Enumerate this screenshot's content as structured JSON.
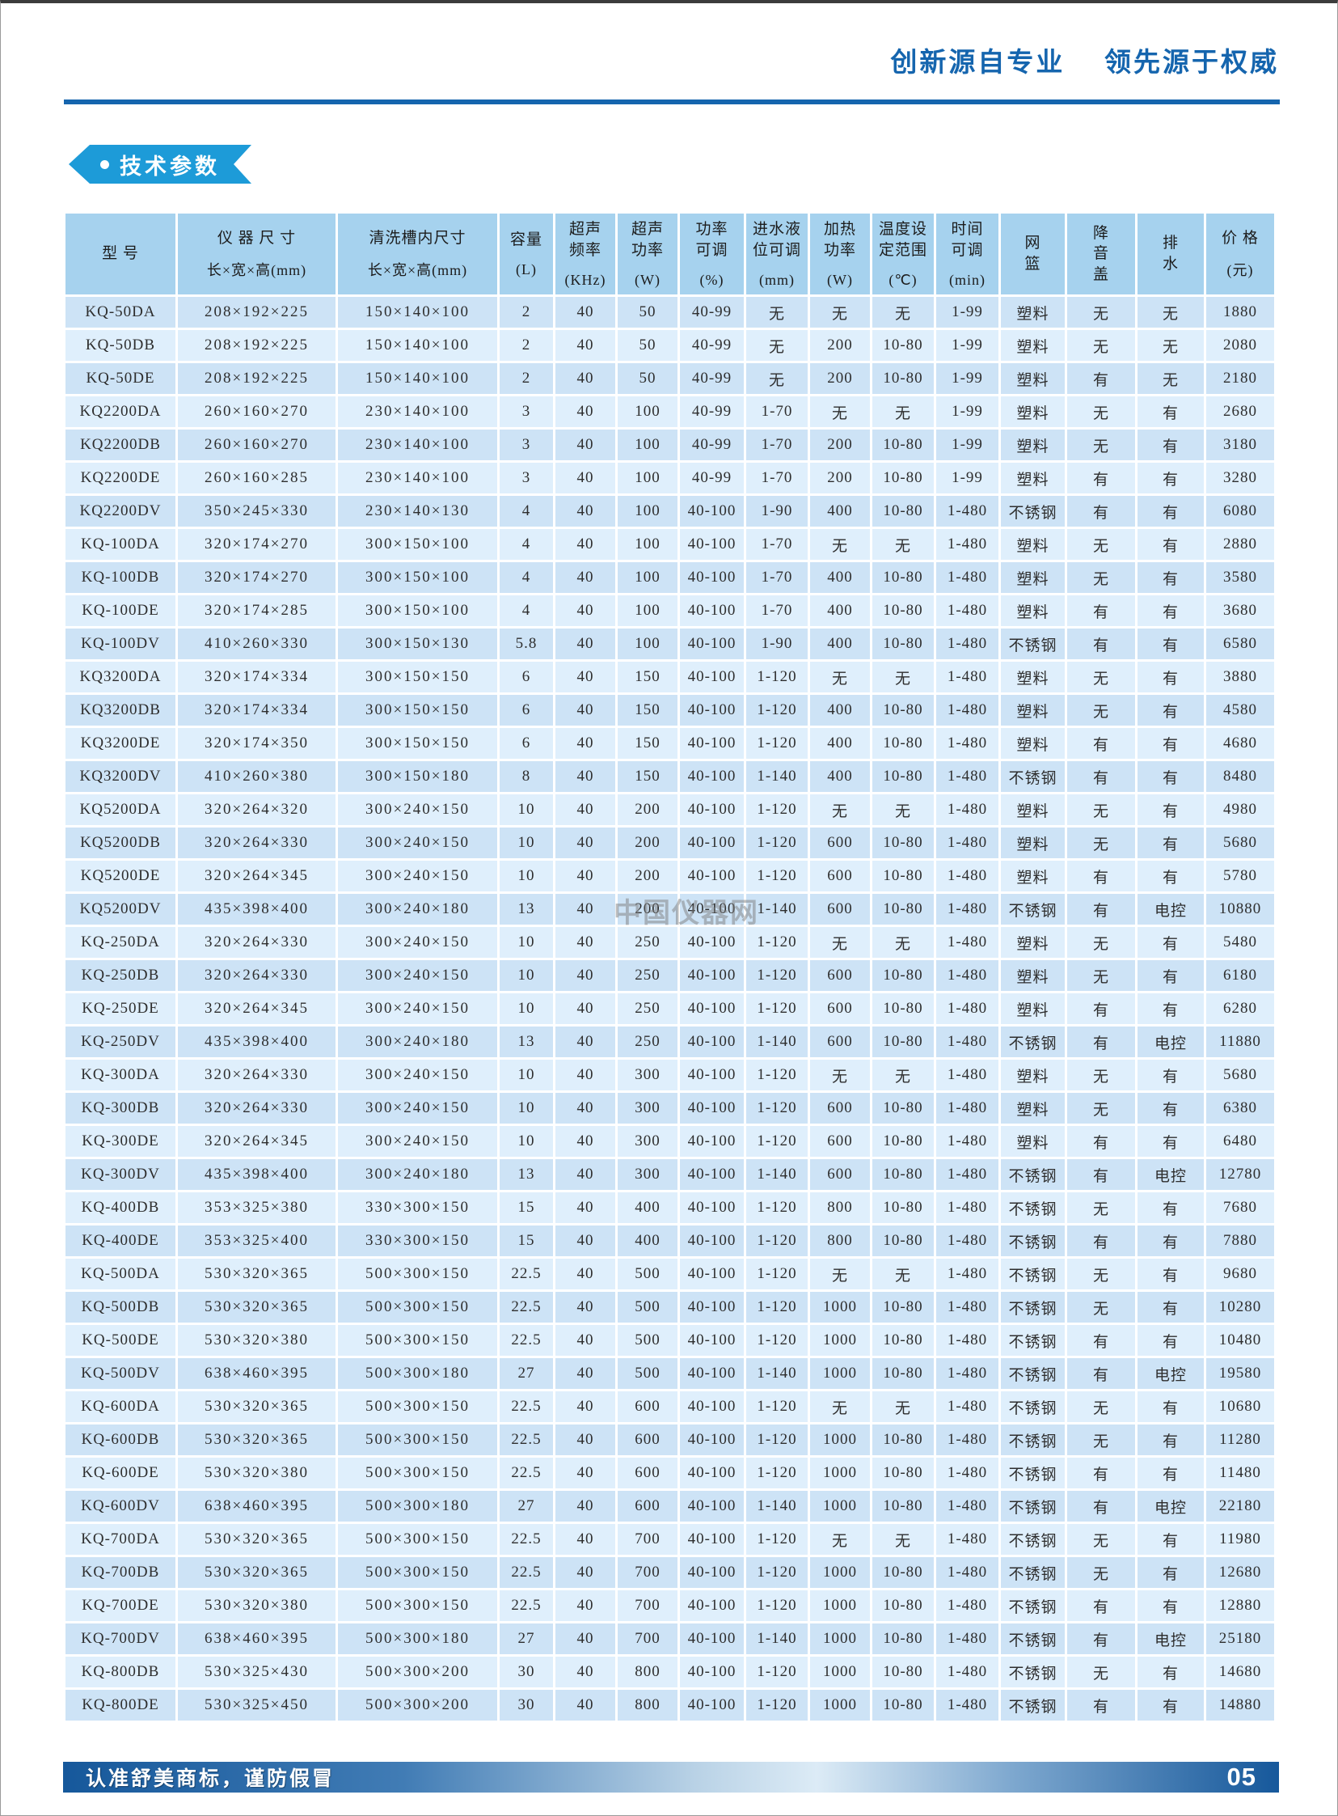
{
  "page": {
    "slogan": "创新源自专业    领先源于权威",
    "section_badge": {
      "bullet": "",
      "label": "技术参数"
    },
    "watermark": "中国仪器网",
    "footer": {
      "note": "认准舒美商标，谨防假冒",
      "page_number": "05"
    },
    "colors": {
      "slogan_blue": "#1565ae",
      "rule_blue": "#1565ae",
      "badge_blue": "#1d9bd8",
      "header_cell_blue": "#a6d2ee",
      "row_odd_blue": "#cde3f6",
      "row_even_blue": "#dfeffc",
      "footer_dark_blue": "#16589b"
    }
  },
  "table": {
    "columns": [
      {
        "lines": [
          "型  号"
        ],
        "unit": ""
      },
      {
        "lines": [
          "仪 器 尺 寸"
        ],
        "unit": "长×宽×高(mm)"
      },
      {
        "lines": [
          "清洗槽内尺寸"
        ],
        "unit": "长×宽×高(mm)"
      },
      {
        "lines": [
          "容量"
        ],
        "unit": "(L)"
      },
      {
        "lines": [
          "超声",
          "频率"
        ],
        "unit": "(KHz)"
      },
      {
        "lines": [
          "超声",
          "功率"
        ],
        "unit": "(W)"
      },
      {
        "lines": [
          "功率",
          "可调"
        ],
        "unit": "(%)"
      },
      {
        "lines": [
          "进水液",
          "位可调"
        ],
        "unit": "(mm)"
      },
      {
        "lines": [
          "加热",
          "功率"
        ],
        "unit": "(W)"
      },
      {
        "lines": [
          "温度设",
          "定范围"
        ],
        "unit": "(℃)"
      },
      {
        "lines": [
          "时间",
          "可调"
        ],
        "unit": "(min)"
      },
      {
        "lines": [
          "网",
          "篮"
        ],
        "unit": ""
      },
      {
        "lines": [
          "降",
          "音",
          "盖"
        ],
        "unit": ""
      },
      {
        "lines": [
          "排",
          "水"
        ],
        "unit": ""
      },
      {
        "lines": [
          "价 格"
        ],
        "unit": "(元)"
      }
    ],
    "rows": [
      [
        "KQ-50DA",
        "208×192×225",
        "150×140×100",
        "2",
        "40",
        "50",
        "40-99",
        "无",
        "无",
        "无",
        "1-99",
        "塑料",
        "无",
        "无",
        "1880"
      ],
      [
        "KQ-50DB",
        "208×192×225",
        "150×140×100",
        "2",
        "40",
        "50",
        "40-99",
        "无",
        "200",
        "10-80",
        "1-99",
        "塑料",
        "无",
        "无",
        "2080"
      ],
      [
        "KQ-50DE",
        "208×192×225",
        "150×140×100",
        "2",
        "40",
        "50",
        "40-99",
        "无",
        "200",
        "10-80",
        "1-99",
        "塑料",
        "有",
        "无",
        "2180"
      ],
      [
        "KQ2200DA",
        "260×160×270",
        "230×140×100",
        "3",
        "40",
        "100",
        "40-99",
        "1-70",
        "无",
        "无",
        "1-99",
        "塑料",
        "无",
        "有",
        "2680"
      ],
      [
        "KQ2200DB",
        "260×160×270",
        "230×140×100",
        "3",
        "40",
        "100",
        "40-99",
        "1-70",
        "200",
        "10-80",
        "1-99",
        "塑料",
        "无",
        "有",
        "3180"
      ],
      [
        "KQ2200DE",
        "260×160×285",
        "230×140×100",
        "3",
        "40",
        "100",
        "40-99",
        "1-70",
        "200",
        "10-80",
        "1-99",
        "塑料",
        "有",
        "有",
        "3280"
      ],
      [
        "KQ2200DV",
        "350×245×330",
        "230×140×130",
        "4",
        "40",
        "100",
        "40-100",
        "1-90",
        "400",
        "10-80",
        "1-480",
        "不锈钢",
        "有",
        "有",
        "6080"
      ],
      [
        "KQ-100DA",
        "320×174×270",
        "300×150×100",
        "4",
        "40",
        "100",
        "40-100",
        "1-70",
        "无",
        "无",
        "1-480",
        "塑料",
        "无",
        "有",
        "2880"
      ],
      [
        "KQ-100DB",
        "320×174×270",
        "300×150×100",
        "4",
        "40",
        "100",
        "40-100",
        "1-70",
        "400",
        "10-80",
        "1-480",
        "塑料",
        "无",
        "有",
        "3580"
      ],
      [
        "KQ-100DE",
        "320×174×285",
        "300×150×100",
        "4",
        "40",
        "100",
        "40-100",
        "1-70",
        "400",
        "10-80",
        "1-480",
        "塑料",
        "有",
        "有",
        "3680"
      ],
      [
        "KQ-100DV",
        "410×260×330",
        "300×150×130",
        "5.8",
        "40",
        "100",
        "40-100",
        "1-90",
        "400",
        "10-80",
        "1-480",
        "不锈钢",
        "有",
        "有",
        "6580"
      ],
      [
        "KQ3200DA",
        "320×174×334",
        "300×150×150",
        "6",
        "40",
        "150",
        "40-100",
        "1-120",
        "无",
        "无",
        "1-480",
        "塑料",
        "无",
        "有",
        "3880"
      ],
      [
        "KQ3200DB",
        "320×174×334",
        "300×150×150",
        "6",
        "40",
        "150",
        "40-100",
        "1-120",
        "400",
        "10-80",
        "1-480",
        "塑料",
        "无",
        "有",
        "4580"
      ],
      [
        "KQ3200DE",
        "320×174×350",
        "300×150×150",
        "6",
        "40",
        "150",
        "40-100",
        "1-120",
        "400",
        "10-80",
        "1-480",
        "塑料",
        "有",
        "有",
        "4680"
      ],
      [
        "KQ3200DV",
        "410×260×380",
        "300×150×180",
        "8",
        "40",
        "150",
        "40-100",
        "1-140",
        "400",
        "10-80",
        "1-480",
        "不锈钢",
        "有",
        "有",
        "8480"
      ],
      [
        "KQ5200DA",
        "320×264×320",
        "300×240×150",
        "10",
        "40",
        "200",
        "40-100",
        "1-120",
        "无",
        "无",
        "1-480",
        "塑料",
        "无",
        "有",
        "4980"
      ],
      [
        "KQ5200DB",
        "320×264×330",
        "300×240×150",
        "10",
        "40",
        "200",
        "40-100",
        "1-120",
        "600",
        "10-80",
        "1-480",
        "塑料",
        "无",
        "有",
        "5680"
      ],
      [
        "KQ5200DE",
        "320×264×345",
        "300×240×150",
        "10",
        "40",
        "200",
        "40-100",
        "1-120",
        "600",
        "10-80",
        "1-480",
        "塑料",
        "有",
        "有",
        "5780"
      ],
      [
        "KQ5200DV",
        "435×398×400",
        "300×240×180",
        "13",
        "40",
        "200",
        "40-100",
        "1-140",
        "600",
        "10-80",
        "1-480",
        "不锈钢",
        "有",
        "电控",
        "10880"
      ],
      [
        "KQ-250DA",
        "320×264×330",
        "300×240×150",
        "10",
        "40",
        "250",
        "40-100",
        "1-120",
        "无",
        "无",
        "1-480",
        "塑料",
        "无",
        "有",
        "5480"
      ],
      [
        "KQ-250DB",
        "320×264×330",
        "300×240×150",
        "10",
        "40",
        "250",
        "40-100",
        "1-120",
        "600",
        "10-80",
        "1-480",
        "塑料",
        "无",
        "有",
        "6180"
      ],
      [
        "KQ-250DE",
        "320×264×345",
        "300×240×150",
        "10",
        "40",
        "250",
        "40-100",
        "1-120",
        "600",
        "10-80",
        "1-480",
        "塑料",
        "有",
        "有",
        "6280"
      ],
      [
        "KQ-250DV",
        "435×398×400",
        "300×240×180",
        "13",
        "40",
        "250",
        "40-100",
        "1-140",
        "600",
        "10-80",
        "1-480",
        "不锈钢",
        "有",
        "电控",
        "11880"
      ],
      [
        "KQ-300DA",
        "320×264×330",
        "300×240×150",
        "10",
        "40",
        "300",
        "40-100",
        "1-120",
        "无",
        "无",
        "1-480",
        "塑料",
        "无",
        "有",
        "5680"
      ],
      [
        "KQ-300DB",
        "320×264×330",
        "300×240×150",
        "10",
        "40",
        "300",
        "40-100",
        "1-120",
        "600",
        "10-80",
        "1-480",
        "塑料",
        "无",
        "有",
        "6380"
      ],
      [
        "KQ-300DE",
        "320×264×345",
        "300×240×150",
        "10",
        "40",
        "300",
        "40-100",
        "1-120",
        "600",
        "10-80",
        "1-480",
        "塑料",
        "有",
        "有",
        "6480"
      ],
      [
        "KQ-300DV",
        "435×398×400",
        "300×240×180",
        "13",
        "40",
        "300",
        "40-100",
        "1-140",
        "600",
        "10-80",
        "1-480",
        "不锈钢",
        "有",
        "电控",
        "12780"
      ],
      [
        "KQ-400DB",
        "353×325×380",
        "330×300×150",
        "15",
        "40",
        "400",
        "40-100",
        "1-120",
        "800",
        "10-80",
        "1-480",
        "不锈钢",
        "无",
        "有",
        "7680"
      ],
      [
        "KQ-400DE",
        "353×325×400",
        "330×300×150",
        "15",
        "40",
        "400",
        "40-100",
        "1-120",
        "800",
        "10-80",
        "1-480",
        "不锈钢",
        "有",
        "有",
        "7880"
      ],
      [
        "KQ-500DA",
        "530×320×365",
        "500×300×150",
        "22.5",
        "40",
        "500",
        "40-100",
        "1-120",
        "无",
        "无",
        "1-480",
        "不锈钢",
        "无",
        "有",
        "9680"
      ],
      [
        "KQ-500DB",
        "530×320×365",
        "500×300×150",
        "22.5",
        "40",
        "500",
        "40-100",
        "1-120",
        "1000",
        "10-80",
        "1-480",
        "不锈钢",
        "无",
        "有",
        "10280"
      ],
      [
        "KQ-500DE",
        "530×320×380",
        "500×300×150",
        "22.5",
        "40",
        "500",
        "40-100",
        "1-120",
        "1000",
        "10-80",
        "1-480",
        "不锈钢",
        "有",
        "有",
        "10480"
      ],
      [
        "KQ-500DV",
        "638×460×395",
        "500×300×180",
        "27",
        "40",
        "500",
        "40-100",
        "1-140",
        "1000",
        "10-80",
        "1-480",
        "不锈钢",
        "有",
        "电控",
        "19580"
      ],
      [
        "KQ-600DA",
        "530×320×365",
        "500×300×150",
        "22.5",
        "40",
        "600",
        "40-100",
        "1-120",
        "无",
        "无",
        "1-480",
        "不锈钢",
        "无",
        "有",
        "10680"
      ],
      [
        "KQ-600DB",
        "530×320×365",
        "500×300×150",
        "22.5",
        "40",
        "600",
        "40-100",
        "1-120",
        "1000",
        "10-80",
        "1-480",
        "不锈钢",
        "无",
        "有",
        "11280"
      ],
      [
        "KQ-600DE",
        "530×320×380",
        "500×300×150",
        "22.5",
        "40",
        "600",
        "40-100",
        "1-120",
        "1000",
        "10-80",
        "1-480",
        "不锈钢",
        "有",
        "有",
        "11480"
      ],
      [
        "KQ-600DV",
        "638×460×395",
        "500×300×180",
        "27",
        "40",
        "600",
        "40-100",
        "1-140",
        "1000",
        "10-80",
        "1-480",
        "不锈钢",
        "有",
        "电控",
        "22180"
      ],
      [
        "KQ-700DA",
        "530×320×365",
        "500×300×150",
        "22.5",
        "40",
        "700",
        "40-100",
        "1-120",
        "无",
        "无",
        "1-480",
        "不锈钢",
        "无",
        "有",
        "11980"
      ],
      [
        "KQ-700DB",
        "530×320×365",
        "500×300×150",
        "22.5",
        "40",
        "700",
        "40-100",
        "1-120",
        "1000",
        "10-80",
        "1-480",
        "不锈钢",
        "无",
        "有",
        "12680"
      ],
      [
        "KQ-700DE",
        "530×320×380",
        "500×300×150",
        "22.5",
        "40",
        "700",
        "40-100",
        "1-120",
        "1000",
        "10-80",
        "1-480",
        "不锈钢",
        "有",
        "有",
        "12880"
      ],
      [
        "KQ-700DV",
        "638×460×395",
        "500×300×180",
        "27",
        "40",
        "700",
        "40-100",
        "1-140",
        "1000",
        "10-80",
        "1-480",
        "不锈钢",
        "有",
        "电控",
        "25180"
      ],
      [
        "KQ-800DB",
        "530×325×430",
        "500×300×200",
        "30",
        "40",
        "800",
        "40-100",
        "1-120",
        "1000",
        "10-80",
        "1-480",
        "不锈钢",
        "无",
        "有",
        "14680"
      ],
      [
        "KQ-800DE",
        "530×325×450",
        "500×300×200",
        "30",
        "40",
        "800",
        "40-100",
        "1-120",
        "1000",
        "10-80",
        "1-480",
        "不锈钢",
        "有",
        "有",
        "14880"
      ]
    ]
  }
}
